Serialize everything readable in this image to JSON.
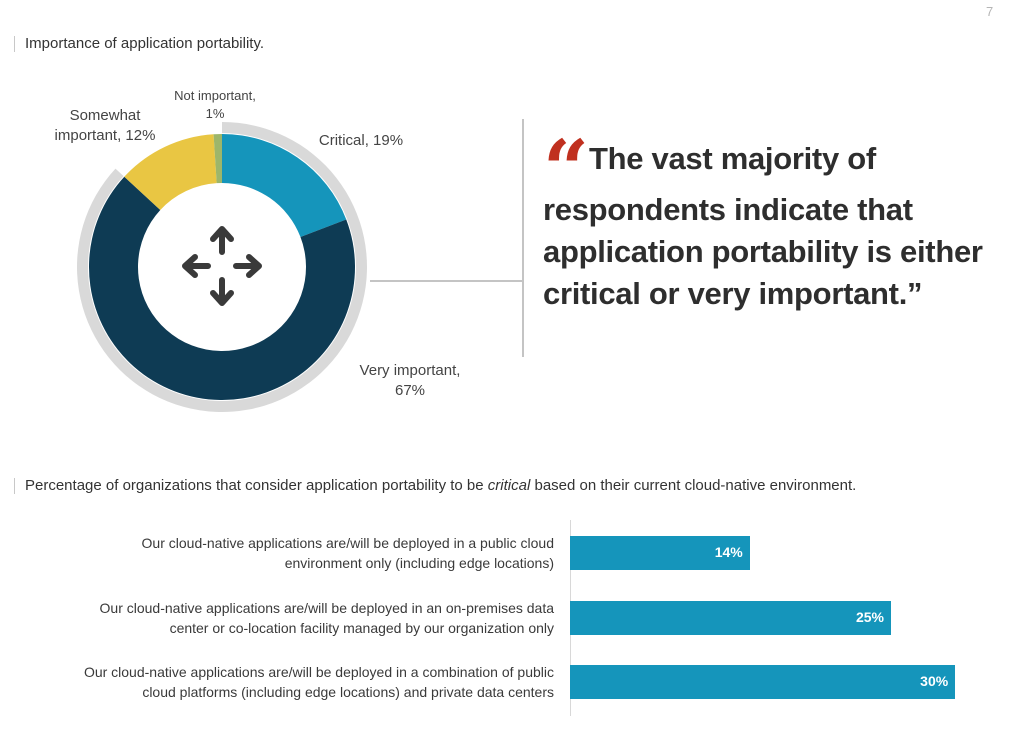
{
  "page_number": "7",
  "donut_title": "Importance of application portability.",
  "center_icon": "move-arrows-icon",
  "quote": {
    "mark": "“",
    "text": "The vast majority of respondents indicate that application portability is either critical or very important.”"
  },
  "bar_title": {
    "before": "Percentage of organizations that consider application portability to be ",
    "emphasis": "critical",
    "after": " based on their current cloud-native environment."
  },
  "chart_data": [
    {
      "type": "pie",
      "title": "Importance of application portability.",
      "slices": [
        {
          "name": "Critical",
          "value": 19,
          "label_line1": "Critical, 19%",
          "label_line2": "",
          "color": "#1595bb"
        },
        {
          "name": "Very important",
          "value": 67,
          "label_line1": "Very important,",
          "label_line2": "67%",
          "color": "#0e3b54"
        },
        {
          "name": "Somewhat important",
          "value": 12,
          "label_line1": "Somewhat",
          "label_line2": "important, 12%",
          "color": "#e9c643"
        },
        {
          "name": "Not important",
          "value": 1,
          "label_line1": "Not important,",
          "label_line2": "1%",
          "color": "#9db66a"
        }
      ],
      "highlight_ring_color": "#d9d9d9"
    },
    {
      "type": "bar",
      "orientation": "horizontal",
      "title": "Percentage of organizations that consider application portability to be critical based on their current cloud-native environment.",
      "categories": [
        [
          "Our cloud-native applications are/will be deployed in a public cloud",
          "environment only (including edge locations)"
        ],
        [
          "Our cloud-native applications are/will be deployed in an on-premises data",
          "center or co-location facility managed by our organization only"
        ],
        [
          "Our cloud-native applications are/will be deployed in a combination of public",
          "cloud platforms (including edge locations) and private data centers"
        ]
      ],
      "values": [
        14,
        25,
        30
      ],
      "value_labels": [
        "14%",
        "25%",
        "30%"
      ],
      "color": "#1595bb"
    }
  ]
}
